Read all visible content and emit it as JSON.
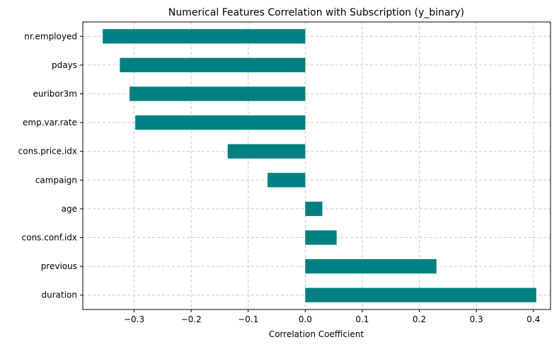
{
  "chart_data": {
    "type": "bar",
    "orientation": "horizontal",
    "title": "Numerical Features Correlation with Subscription (y_binary)",
    "xlabel": "Correlation Coefficient",
    "ylabel": "",
    "categories": [
      "nr.employed",
      "pdays",
      "euribor3m",
      "emp.var.rate",
      "cons.price.idx",
      "campaign",
      "age",
      "cons.conf.idx",
      "previous",
      "duration"
    ],
    "values": [
      -0.355,
      -0.325,
      -0.308,
      -0.298,
      -0.136,
      -0.066,
      0.03,
      0.055,
      0.23,
      0.405
    ],
    "xlim": [
      -0.39,
      0.43
    ],
    "xticks": [
      -0.3,
      -0.2,
      -0.1,
      0.0,
      0.1,
      0.2,
      0.3,
      0.4
    ],
    "xtick_labels": [
      "−0.3",
      "−0.2",
      "−0.1",
      "0.0",
      "0.1",
      "0.2",
      "0.3",
      "0.4"
    ],
    "grid": true,
    "bar_color": "#008080"
  }
}
